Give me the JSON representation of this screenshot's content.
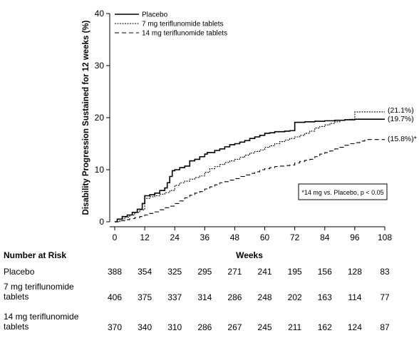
{
  "chart_data": {
    "type": "line",
    "title": "",
    "xlabel": "Weeks",
    "ylabel": "Disability Progression Sustained for 12 weeks (%)",
    "xlim": [
      0,
      108
    ],
    "ylim": [
      0,
      40
    ],
    "xticks": [
      "0",
      "12",
      "24",
      "36",
      "48",
      "60",
      "72",
      "84",
      "96",
      "108"
    ],
    "yticks": [
      "0",
      "10",
      "20",
      "30",
      "40"
    ],
    "grid": false,
    "legend_position": "top-left",
    "series": [
      {
        "name": "Placebo",
        "style": "solid",
        "end_label": "(19.7%)",
        "x": [
          0,
          1,
          3,
          5,
          7,
          9,
          11,
          12,
          14,
          16,
          18,
          20,
          21,
          22,
          23,
          24,
          26,
          28,
          30,
          32,
          34,
          36,
          37,
          38,
          40,
          42,
          44,
          46,
          48,
          50,
          52,
          54,
          56,
          58,
          60,
          62,
          64,
          66,
          68,
          70,
          72,
          74,
          76,
          78,
          80,
          84,
          88,
          92,
          96,
          100,
          104,
          108
        ],
        "y": [
          0,
          0.5,
          1,
          1.3,
          1.8,
          2.4,
          3.5,
          5,
          5.2,
          5.5,
          6,
          6.5,
          7.5,
          8.7,
          9.8,
          10,
          10.4,
          10.7,
          11.7,
          12,
          12.5,
          13,
          13.3,
          13.3,
          13.7,
          14,
          14.4,
          14.8,
          15,
          15.3,
          15.6,
          16,
          16.3,
          16.6,
          17,
          17.1,
          17.3,
          17.3,
          17.4,
          17.5,
          19.1,
          19.1,
          19.2,
          19.2,
          19.3,
          19.4,
          19.5,
          19.6,
          19.7,
          19.7,
          19.7,
          19.7
        ]
      },
      {
        "name": "7 mg teriflunomide tablets",
        "style": "dotted",
        "end_label": "(21.1%)",
        "x": [
          0,
          2,
          4,
          6,
          8,
          10,
          12,
          14,
          16,
          18,
          20,
          22,
          24,
          26,
          28,
          30,
          32,
          34,
          36,
          38,
          40,
          42,
          44,
          46,
          48,
          50,
          52,
          54,
          56,
          58,
          60,
          62,
          64,
          66,
          68,
          70,
          72,
          74,
          76,
          78,
          80,
          82,
          84,
          86,
          88,
          90,
          92,
          94,
          96,
          100,
          104,
          108
        ],
        "y": [
          0,
          0.5,
          0.9,
          1.3,
          1.8,
          2.3,
          4.5,
          4.8,
          5,
          5.3,
          5.6,
          6,
          7,
          7.5,
          7.8,
          8.2,
          8.5,
          8.8,
          9.5,
          10.2,
          10.6,
          11,
          11.4,
          11.7,
          12,
          12.4,
          12.8,
          13.2,
          13.5,
          13.8,
          14.3,
          14.6,
          15,
          15.4,
          15.7,
          16,
          16.3,
          16.6,
          17,
          17.4,
          18,
          18.3,
          18.6,
          18.9,
          19.2,
          19.5,
          19.6,
          19.7,
          21.1,
          21.1,
          21.1,
          21.1
        ]
      },
      {
        "name": "14 mg teriflunomide tablets",
        "style": "dashed",
        "end_label": "(15.8%)*",
        "x": [
          0,
          2,
          4,
          6,
          8,
          10,
          12,
          14,
          16,
          18,
          20,
          22,
          24,
          26,
          28,
          30,
          32,
          34,
          36,
          38,
          40,
          42,
          44,
          46,
          48,
          50,
          52,
          54,
          56,
          58,
          60,
          62,
          64,
          66,
          68,
          70,
          72,
          74,
          76,
          78,
          80,
          82,
          84,
          86,
          88,
          90,
          92,
          94,
          96,
          98,
          100,
          108
        ],
        "y": [
          0,
          0.2,
          0.4,
          0.6,
          0.8,
          1,
          1.3,
          1.6,
          1.9,
          2.3,
          2.7,
          3,
          3.5,
          4,
          4.6,
          5.1,
          5.5,
          5.8,
          6.3,
          6.7,
          7.1,
          7.5,
          7.7,
          8,
          8.3,
          8.7,
          9,
          9.3,
          9.6,
          10,
          10.2,
          10.4,
          10.6,
          10.7,
          10.8,
          10.9,
          11.3,
          11.6,
          11.8,
          12,
          12.5,
          13,
          13.3,
          13.6,
          14,
          14.3,
          14.7,
          15,
          15.2,
          15.5,
          15.8,
          15.8
        ]
      }
    ],
    "annotation": "*14 mg vs. Placebo, p < 0.05"
  },
  "risk_table": {
    "header": "Number at Risk",
    "x_header": "Weeks",
    "rows": [
      {
        "label": [
          "Placebo"
        ],
        "values": [
          "388",
          "354",
          "325",
          "295",
          "271",
          "241",
          "195",
          "156",
          "128",
          "83"
        ]
      },
      {
        "label": [
          "7 mg teriflunomide",
          "tablets"
        ],
        "values": [
          "406",
          "375",
          "337",
          "314",
          "286",
          "248",
          "202",
          "163",
          "114",
          "77"
        ]
      },
      {
        "label": [
          "14 mg teriflunomide",
          "tablets"
        ],
        "values": [
          "370",
          "340",
          "310",
          "286",
          "267",
          "245",
          "211",
          "162",
          "124",
          "87"
        ]
      }
    ]
  }
}
